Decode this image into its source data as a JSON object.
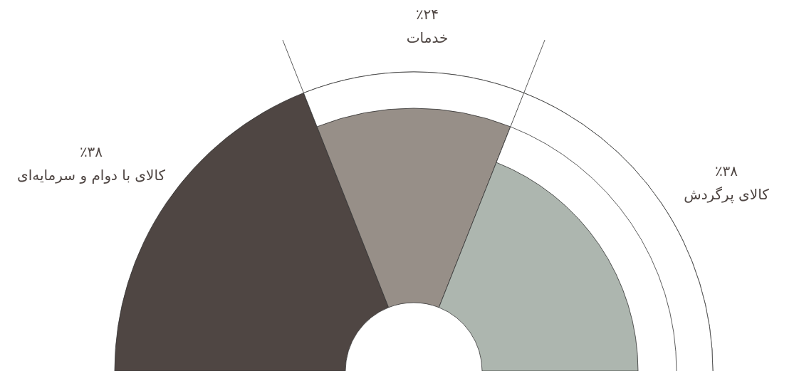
{
  "chart_data": {
    "type": "donut",
    "categories": [
      "کالای با دوام و سرمایه‌ای",
      "خدمات",
      "کالای پرگردش"
    ],
    "values": [
      38,
      24,
      38
    ],
    "colors": [
      "#4f4643",
      "#978f88",
      "#adb6af"
    ],
    "value_labels": [
      "٪۳۸",
      "٪۲۴",
      "٪۳۸"
    ]
  }
}
